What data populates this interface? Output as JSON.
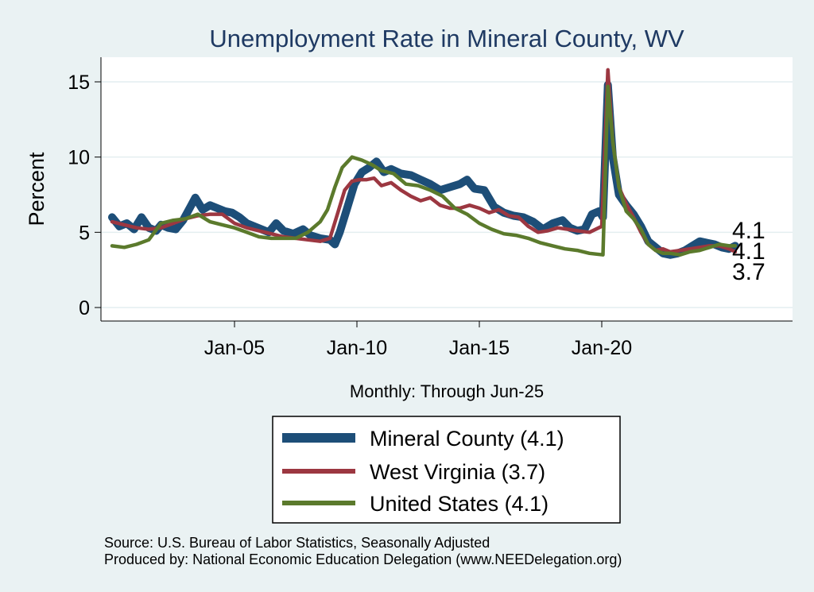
{
  "chart_data": {
    "type": "line",
    "title": "Unemployment Rate in Mineral  County, WV",
    "xlabel": "Monthly: Through Jun-25",
    "ylabel": "Percent",
    "ylim": [
      0,
      16
    ],
    "yticks": [
      0,
      5,
      10,
      15
    ],
    "xticks": [
      {
        "label": "Jan-05",
        "year": 2005
      },
      {
        "label": "Jan-10",
        "year": 2010
      },
      {
        "label": "Jan-15",
        "year": 2015
      },
      {
        "label": "Jan-20",
        "year": 2020
      }
    ],
    "x_range": [
      2000.0,
      2025.5
    ],
    "grid": true,
    "legend_position": "bottom",
    "series": [
      {
        "name": "Mineral  County",
        "legend_label": "Mineral  County (4.1)",
        "end_label": "4.1",
        "color": "#1d4e78",
        "points": [
          [
            2000.0,
            6.0
          ],
          [
            2000.3,
            5.4
          ],
          [
            2000.6,
            5.6
          ],
          [
            2000.9,
            5.2
          ],
          [
            2001.2,
            6.0
          ],
          [
            2001.5,
            5.3
          ],
          [
            2001.8,
            5.1
          ],
          [
            2002.0,
            5.5
          ],
          [
            2002.3,
            5.3
          ],
          [
            2002.6,
            5.2
          ],
          [
            2002.9,
            5.8
          ],
          [
            2003.2,
            6.7
          ],
          [
            2003.4,
            7.3
          ],
          [
            2003.7,
            6.5
          ],
          [
            2004.0,
            6.8
          ],
          [
            2004.3,
            6.6
          ],
          [
            2004.6,
            6.4
          ],
          [
            2004.9,
            6.3
          ],
          [
            2005.2,
            6.0
          ],
          [
            2005.5,
            5.6
          ],
          [
            2005.8,
            5.4
          ],
          [
            2006.1,
            5.2
          ],
          [
            2006.4,
            5.0
          ],
          [
            2006.7,
            5.6
          ],
          [
            2007.0,
            5.1
          ],
          [
            2007.4,
            4.9
          ],
          [
            2007.8,
            5.2
          ],
          [
            2008.1,
            4.8
          ],
          [
            2008.5,
            4.6
          ],
          [
            2008.9,
            4.5
          ],
          [
            2009.1,
            4.2
          ],
          [
            2009.3,
            5.0
          ],
          [
            2009.6,
            6.6
          ],
          [
            2009.9,
            8.2
          ],
          [
            2010.2,
            9.0
          ],
          [
            2010.5,
            9.3
          ],
          [
            2010.8,
            9.7
          ],
          [
            2011.1,
            9.0
          ],
          [
            2011.4,
            9.2
          ],
          [
            2011.8,
            8.9
          ],
          [
            2012.2,
            8.8
          ],
          [
            2012.6,
            8.5
          ],
          [
            2013.0,
            8.2
          ],
          [
            2013.4,
            7.8
          ],
          [
            2013.8,
            8.0
          ],
          [
            2014.2,
            8.2
          ],
          [
            2014.5,
            8.5
          ],
          [
            2014.8,
            7.9
          ],
          [
            2015.2,
            7.8
          ],
          [
            2015.6,
            6.7
          ],
          [
            2016.0,
            6.3
          ],
          [
            2016.4,
            6.1
          ],
          [
            2016.8,
            6.0
          ],
          [
            2017.2,
            5.7
          ],
          [
            2017.6,
            5.2
          ],
          [
            2018.0,
            5.6
          ],
          [
            2018.4,
            5.8
          ],
          [
            2018.7,
            5.3
          ],
          [
            2019.0,
            5.1
          ],
          [
            2019.3,
            5.2
          ],
          [
            2019.6,
            6.2
          ],
          [
            2019.9,
            6.4
          ],
          [
            2020.05,
            6.0
          ],
          [
            2020.25,
            14.8
          ],
          [
            2020.45,
            10.0
          ],
          [
            2020.7,
            7.5
          ],
          [
            2021.0,
            6.8
          ],
          [
            2021.3,
            6.2
          ],
          [
            2021.6,
            5.4
          ],
          [
            2021.9,
            4.4
          ],
          [
            2022.2,
            4.0
          ],
          [
            2022.5,
            3.6
          ],
          [
            2022.8,
            3.5
          ],
          [
            2023.1,
            3.6
          ],
          [
            2023.4,
            3.8
          ],
          [
            2023.7,
            4.1
          ],
          [
            2024.0,
            4.4
          ],
          [
            2024.3,
            4.3
          ],
          [
            2024.6,
            4.2
          ],
          [
            2024.9,
            4.0
          ],
          [
            2025.2,
            3.9
          ],
          [
            2025.45,
            4.1
          ]
        ]
      },
      {
        "name": "West Virginia",
        "legend_label": "West Virginia (3.7)",
        "end_label": "3.7",
        "color": "#9c3741",
        "points": [
          [
            2000.0,
            5.7
          ],
          [
            2000.5,
            5.5
          ],
          [
            2001.0,
            5.3
          ],
          [
            2001.5,
            5.2
          ],
          [
            2002.0,
            5.3
          ],
          [
            2002.5,
            5.6
          ],
          [
            2003.0,
            5.9
          ],
          [
            2003.5,
            6.1
          ],
          [
            2004.0,
            6.2
          ],
          [
            2004.5,
            6.2
          ],
          [
            2005.0,
            5.6
          ],
          [
            2005.5,
            5.3
          ],
          [
            2006.0,
            5.1
          ],
          [
            2006.5,
            4.9
          ],
          [
            2007.0,
            4.7
          ],
          [
            2007.5,
            4.6
          ],
          [
            2008.0,
            4.5
          ],
          [
            2008.5,
            4.4
          ],
          [
            2008.9,
            4.6
          ],
          [
            2009.2,
            6.2
          ],
          [
            2009.5,
            7.8
          ],
          [
            2009.8,
            8.4
          ],
          [
            2010.1,
            8.5
          ],
          [
            2010.4,
            8.5
          ],
          [
            2010.7,
            8.6
          ],
          [
            2011.0,
            8.1
          ],
          [
            2011.4,
            8.3
          ],
          [
            2011.8,
            7.8
          ],
          [
            2012.2,
            7.4
          ],
          [
            2012.6,
            7.1
          ],
          [
            2013.0,
            7.3
          ],
          [
            2013.4,
            6.8
          ],
          [
            2013.8,
            6.6
          ],
          [
            2014.2,
            6.6
          ],
          [
            2014.6,
            6.8
          ],
          [
            2015.0,
            6.6
          ],
          [
            2015.4,
            6.3
          ],
          [
            2015.8,
            6.5
          ],
          [
            2016.2,
            6.1
          ],
          [
            2016.6,
            6.0
          ],
          [
            2017.0,
            5.4
          ],
          [
            2017.4,
            5.0
          ],
          [
            2017.8,
            5.1
          ],
          [
            2018.2,
            5.3
          ],
          [
            2018.6,
            5.2
          ],
          [
            2019.0,
            5.1
          ],
          [
            2019.5,
            5.0
          ],
          [
            2020.0,
            5.4
          ],
          [
            2020.25,
            15.8
          ],
          [
            2020.45,
            11.0
          ],
          [
            2020.7,
            8.0
          ],
          [
            2021.0,
            6.9
          ],
          [
            2021.3,
            6.0
          ],
          [
            2021.6,
            5.0
          ],
          [
            2021.9,
            4.2
          ],
          [
            2022.2,
            3.8
          ],
          [
            2022.5,
            3.9
          ],
          [
            2022.8,
            3.7
          ],
          [
            2023.2,
            3.8
          ],
          [
            2023.6,
            3.9
          ],
          [
            2024.0,
            4.0
          ],
          [
            2024.4,
            4.1
          ],
          [
            2024.8,
            4.1
          ],
          [
            2025.2,
            3.9
          ],
          [
            2025.45,
            3.7
          ]
        ]
      },
      {
        "name": "United States",
        "legend_label": "United States (4.1)",
        "end_label": "4.1",
        "color": "#5b7a2c",
        "points": [
          [
            2000.0,
            4.1
          ],
          [
            2000.5,
            4.0
          ],
          [
            2001.0,
            4.2
          ],
          [
            2001.5,
            4.5
          ],
          [
            2002.0,
            5.6
          ],
          [
            2002.5,
            5.8
          ],
          [
            2003.0,
            5.9
          ],
          [
            2003.5,
            6.2
          ],
          [
            2004.0,
            5.7
          ],
          [
            2004.5,
            5.5
          ],
          [
            2005.0,
            5.3
          ],
          [
            2005.5,
            5.0
          ],
          [
            2006.0,
            4.7
          ],
          [
            2006.5,
            4.6
          ],
          [
            2007.0,
            4.6
          ],
          [
            2007.5,
            4.6
          ],
          [
            2008.0,
            5.0
          ],
          [
            2008.5,
            5.7
          ],
          [
            2008.8,
            6.5
          ],
          [
            2009.1,
            8.0
          ],
          [
            2009.4,
            9.3
          ],
          [
            2009.8,
            10.0
          ],
          [
            2010.2,
            9.8
          ],
          [
            2010.6,
            9.5
          ],
          [
            2011.0,
            9.1
          ],
          [
            2011.5,
            8.9
          ],
          [
            2012.0,
            8.2
          ],
          [
            2012.5,
            8.1
          ],
          [
            2013.0,
            7.8
          ],
          [
            2013.5,
            7.4
          ],
          [
            2014.0,
            6.6
          ],
          [
            2014.5,
            6.2
          ],
          [
            2015.0,
            5.6
          ],
          [
            2015.5,
            5.2
          ],
          [
            2016.0,
            4.9
          ],
          [
            2016.5,
            4.8
          ],
          [
            2017.0,
            4.6
          ],
          [
            2017.5,
            4.3
          ],
          [
            2018.0,
            4.1
          ],
          [
            2018.5,
            3.9
          ],
          [
            2019.0,
            3.8
          ],
          [
            2019.5,
            3.6
          ],
          [
            2020.05,
            3.5
          ],
          [
            2020.25,
            14.7
          ],
          [
            2020.45,
            11.0
          ],
          [
            2020.7,
            8.0
          ],
          [
            2021.0,
            6.4
          ],
          [
            2021.3,
            5.9
          ],
          [
            2021.6,
            5.2
          ],
          [
            2021.9,
            4.2
          ],
          [
            2022.2,
            3.8
          ],
          [
            2022.5,
            3.6
          ],
          [
            2022.8,
            3.6
          ],
          [
            2023.2,
            3.5
          ],
          [
            2023.6,
            3.7
          ],
          [
            2024.0,
            3.8
          ],
          [
            2024.4,
            4.0
          ],
          [
            2024.8,
            4.2
          ],
          [
            2025.2,
            4.1
          ],
          [
            2025.45,
            4.1
          ]
        ]
      }
    ]
  },
  "source": {
    "line1": "Source: U.S. Bureau of Labor Statistics, Seasonally Adjusted",
    "line2": "Produced by: National Economic Education Delegation (www.NEEDelegation.org)"
  }
}
